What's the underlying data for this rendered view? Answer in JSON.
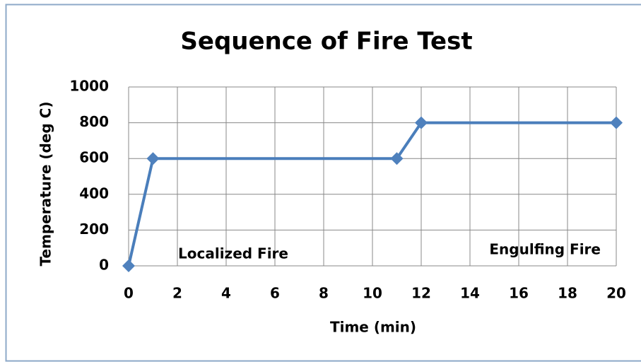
{
  "chart_data": {
    "type": "line",
    "title": "Sequence of Fire Test",
    "x_label": "Time (min)",
    "y_label": "Temperature (deg C)",
    "x": [
      0,
      1,
      11,
      12,
      20
    ],
    "series": [
      {
        "name": "Temperature",
        "color": "#4a7ebb",
        "values": [
          0,
          600,
          600,
          800,
          800
        ]
      }
    ],
    "xlim": [
      0,
      20
    ],
    "xticks": [
      0,
      2,
      4,
      6,
      8,
      10,
      12,
      14,
      16,
      18,
      20
    ],
    "ylim": [
      0,
      1000
    ],
    "yticks": [
      0,
      200,
      400,
      600,
      800,
      1000
    ],
    "grid": true,
    "annotations": [
      "Localized Fire",
      "Engulfing Fire"
    ]
  }
}
